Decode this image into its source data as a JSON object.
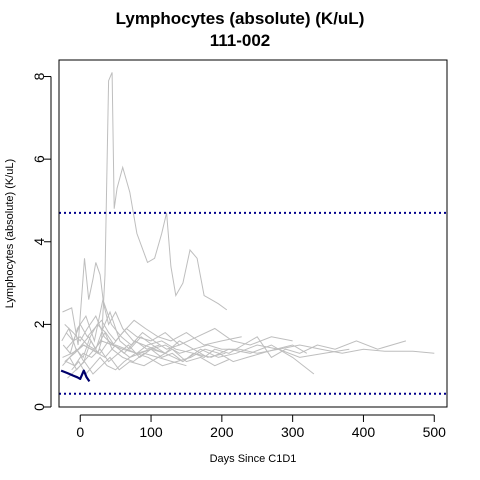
{
  "chart_data": {
    "type": "line",
    "title": "Lymphocytes (absolute) (K/uL)",
    "subtitle": "111-002",
    "xlabel": "Days Since C1D1",
    "ylabel": "Lymphocytes (absolute) (K/uL)",
    "xlim": [
      -30,
      518
    ],
    "ylim": [
      0,
      8.4
    ],
    "x_ticks": [
      0,
      100,
      200,
      300,
      400,
      500
    ],
    "y_ticks": [
      0,
      2,
      4,
      6,
      8
    ],
    "reference_lines": [
      {
        "y": 4.7,
        "color": "#00008B",
        "style": "dotted"
      },
      {
        "y": 0.32,
        "color": "#00008B",
        "style": "dotted"
      }
    ],
    "highlight_series": {
      "name": "111-002",
      "color": "#00006B",
      "x": [
        -27,
        -18,
        -10,
        -4,
        0,
        5,
        9,
        13
      ],
      "y": [
        0.88,
        0.82,
        0.76,
        0.72,
        0.68,
        0.88,
        0.72,
        0.62
      ]
    },
    "background_series_color": "#BEBEBE",
    "background_series": [
      {
        "x": [
          -25,
          -12,
          -2,
          5,
          15,
          25,
          30,
          35,
          40,
          45,
          48,
          52,
          60,
          70,
          80,
          95,
          105,
          115,
          122,
          128,
          135,
          145,
          155,
          165,
          175,
          185,
          195,
          207
        ],
        "y": [
          1.2,
          1.3,
          1.4,
          1.5,
          1.4,
          1.3,
          1.6,
          3.2,
          7.9,
          8.1,
          4.8,
          5.3,
          5.8,
          5.2,
          4.2,
          3.5,
          3.6,
          4.2,
          4.7,
          3.4,
          2.7,
          3.0,
          3.8,
          3.6,
          2.7,
          2.6,
          2.5,
          2.35
        ]
      },
      {
        "x": [
          -25,
          -12,
          -3,
          6,
          12,
          18,
          22,
          28,
          33,
          40,
          50,
          60,
          75,
          90,
          105,
          120
        ],
        "y": [
          2.3,
          2.4,
          1.5,
          3.6,
          2.6,
          3.1,
          3.5,
          3.2,
          2.5,
          2.0,
          2.3,
          1.9,
          1.6,
          1.5,
          1.4,
          1.3
        ]
      },
      {
        "x": [
          -20,
          -10,
          0,
          10,
          20,
          30,
          45,
          60,
          80,
          100,
          120,
          140,
          160,
          180,
          200,
          225,
          250,
          280,
          310,
          340,
          370,
          400,
          430,
          470,
          500
        ],
        "y": [
          1.4,
          1.6,
          1.7,
          1.5,
          1.4,
          1.6,
          1.5,
          1.4,
          1.3,
          1.4,
          1.5,
          1.3,
          1.4,
          1.5,
          1.4,
          1.4,
          1.3,
          1.4,
          1.5,
          1.4,
          1.3,
          1.4,
          1.35,
          1.35,
          1.3
        ]
      },
      {
        "x": [
          -22,
          -8,
          4,
          16,
          28,
          40,
          55,
          70,
          85,
          100,
          115,
          130,
          145,
          160,
          175,
          190,
          210,
          230,
          250,
          270,
          290,
          310,
          335,
          360,
          390,
          420,
          460
        ],
        "y": [
          1.1,
          1.3,
          1.5,
          1.4,
          1.3,
          1.6,
          1.4,
          1.2,
          1.3,
          1.4,
          1.2,
          1.3,
          1.1,
          1.3,
          1.2,
          1.4,
          1.3,
          1.5,
          1.7,
          1.2,
          1.4,
          1.3,
          1.5,
          1.4,
          1.6,
          1.4,
          1.6
        ]
      },
      {
        "x": [
          -25,
          -15,
          -5,
          5,
          15,
          25,
          35,
          45,
          60,
          75,
          90,
          110,
          130,
          150,
          170,
          190,
          210
        ],
        "y": [
          1.0,
          1.2,
          0.9,
          1.1,
          1.3,
          1.5,
          1.8,
          1.4,
          1.2,
          1.1,
          1.3,
          1.2,
          1.4,
          1.1,
          1.2,
          1.0,
          1.15
        ]
      },
      {
        "x": [
          -20,
          -10,
          0,
          10,
          20,
          30,
          40,
          50,
          65,
          80,
          100,
          120,
          140,
          165,
          190,
          215,
          240,
          270,
          300
        ],
        "y": [
          1.8,
          1.6,
          2.0,
          1.7,
          1.9,
          2.1,
          1.8,
          1.6,
          1.9,
          1.7,
          1.6,
          1.8,
          1.5,
          1.7,
          1.9,
          1.6,
          1.5,
          1.7,
          1.6
        ]
      },
      {
        "x": [
          -18,
          -6,
          6,
          18,
          30,
          42,
          55,
          70,
          90,
          110,
          130,
          150
        ],
        "y": [
          0.7,
          0.9,
          1.1,
          0.8,
          1.0,
          1.2,
          0.9,
          1.1,
          1.0,
          1.2,
          1.1,
          1.0
        ]
      },
      {
        "x": [
          -24,
          -14,
          -4,
          8,
          20,
          32,
          44,
          58,
          72,
          88,
          104,
          122,
          140
        ],
        "y": [
          1.5,
          1.3,
          1.9,
          2.2,
          1.6,
          2.6,
          2.0,
          1.7,
          1.5,
          1.8,
          1.6,
          1.4,
          1.5
        ]
      },
      {
        "x": [
          -15,
          -5,
          5,
          15,
          25,
          35,
          50,
          65,
          80,
          95,
          115,
          135,
          160,
          185,
          210,
          240,
          270,
          300,
          330
        ],
        "y": [
          1.2,
          1.4,
          1.1,
          1.6,
          1.3,
          1.2,
          1.5,
          1.4,
          1.3,
          1.5,
          1.6,
          1.4,
          1.3,
          1.2,
          1.4,
          1.3,
          1.5,
          1.2,
          0.8
        ]
      },
      {
        "x": [
          -22,
          -10,
          0,
          10,
          22,
          34,
          46,
          60,
          76,
          92,
          110,
          128,
          150,
          175,
          200,
          228
        ],
        "y": [
          2.0,
          1.8,
          1.6,
          1.9,
          2.2,
          1.7,
          1.5,
          1.8,
          2.1,
          1.9,
          1.7,
          1.6,
          1.8,
          1.5,
          1.6,
          1.7
        ]
      },
      {
        "x": [
          -12,
          -2,
          8,
          18,
          28,
          38,
          50,
          62,
          78,
          96,
          116,
          136,
          156,
          176,
          196,
          216,
          236,
          256,
          276,
          300,
          320
        ],
        "y": [
          0.9,
          1.1,
          0.8,
          1.0,
          1.2,
          1.0,
          0.9,
          1.1,
          1.3,
          1.2,
          1.0,
          1.1,
          1.2,
          1.4,
          1.3,
          1.1,
          1.2,
          1.3,
          1.4,
          1.5,
          1.3
        ]
      },
      {
        "x": [
          -26,
          -16,
          -6,
          4,
          14,
          24,
          36,
          48,
          62,
          78,
          94,
          112
        ],
        "y": [
          1.6,
          1.9,
          1.4,
          1.2,
          1.7,
          2.0,
          1.8,
          1.5,
          1.3,
          1.6,
          1.4,
          1.5
        ]
      },
      {
        "x": [
          -8,
          2,
          12,
          22,
          32,
          42,
          56,
          70,
          86,
          102,
          120,
          140,
          160,
          180,
          205
        ],
        "y": [
          1.3,
          1.5,
          1.7,
          1.4,
          1.9,
          2.3,
          1.6,
          1.4,
          1.7,
          1.5,
          1.3,
          1.6,
          1.4,
          1.2,
          1.3
        ]
      },
      {
        "x": [
          -20,
          -8,
          4,
          16,
          28,
          40,
          54,
          68,
          84,
          100,
          120,
          145,
          170,
          195,
          220,
          250,
          280,
          310,
          345,
          380
        ],
        "y": [
          1.1,
          1.0,
          1.3,
          1.2,
          1.4,
          1.1,
          1.3,
          1.5,
          1.2,
          1.4,
          1.3,
          1.1,
          1.4,
          1.2,
          1.3,
          1.5,
          1.4,
          1.2,
          1.3,
          1.4
        ]
      }
    ]
  }
}
